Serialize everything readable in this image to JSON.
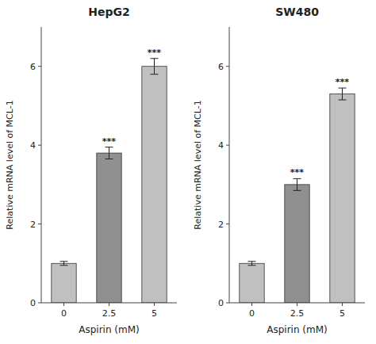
{
  "chart_data": [
    {
      "type": "bar",
      "title": "HepG2",
      "categories": [
        "0",
        "2.5",
        "5"
      ],
      "values": [
        1.0,
        3.8,
        6.0
      ],
      "errors": [
        0.05,
        0.15,
        0.2
      ],
      "colors": [
        "#c0c0c0",
        "#909090",
        "#c0c0c0"
      ],
      "xlabel": "Aspirin (mM)",
      "ylabel": "Relative mRNA level of MCL-1",
      "ylim": [
        0,
        7
      ],
      "yticks": [
        0,
        2,
        4,
        6
      ],
      "grid": false,
      "annotations": [
        {
          "text": "***",
          "category": "2.5"
        },
        {
          "text": "***",
          "category": "5"
        }
      ]
    },
    {
      "type": "bar",
      "title": "SW480",
      "categories": [
        "0",
        "2.5",
        "5"
      ],
      "values": [
        1.0,
        3.0,
        5.3
      ],
      "errors": [
        0.05,
        0.15,
        0.15
      ],
      "colors": [
        "#c0c0c0",
        "#909090",
        "#c0c0c0"
      ],
      "xlabel": "Aspirin (mM)",
      "ylabel": "Relative mRNA level of MCL-1",
      "ylim": [
        0,
        7
      ],
      "yticks": [
        0,
        2,
        4,
        6
      ],
      "grid": false,
      "annotations": [
        {
          "text": "***",
          "category": "2.5"
        },
        {
          "text": "***",
          "category": "5"
        }
      ]
    }
  ]
}
